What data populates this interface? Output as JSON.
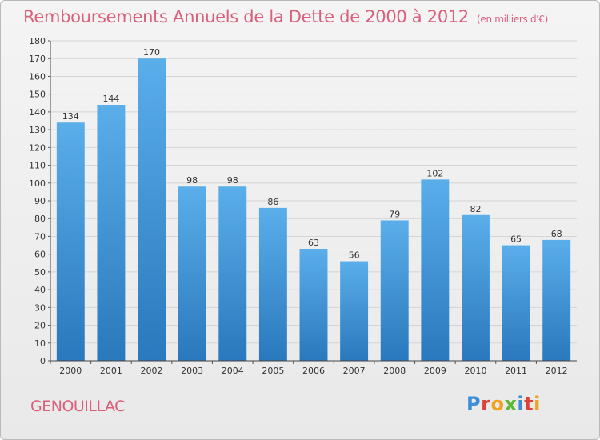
{
  "title": "Remboursements Annuels de la Dette de 2000 à 2012",
  "subtitle": "(en milliers d'€)",
  "commune": "GENOUILLAC",
  "brand": "Proxiti",
  "colors": {
    "title": "#d95f7c",
    "bar_top": "#5aaeea",
    "bar_bottom": "#2a78bd",
    "grid": "#d4d4d4"
  },
  "chart_data": {
    "type": "bar",
    "categories": [
      "2000",
      "2001",
      "2002",
      "2003",
      "2004",
      "2005",
      "2006",
      "2007",
      "2008",
      "2009",
      "2010",
      "2011",
      "2012"
    ],
    "values": [
      134,
      144,
      170,
      98,
      98,
      86,
      63,
      56,
      79,
      102,
      82,
      65,
      68
    ],
    "ylim": [
      0,
      180
    ],
    "ytick_step": 10,
    "grid": true,
    "data_labels": true,
    "xlabel": "",
    "ylabel": ""
  }
}
